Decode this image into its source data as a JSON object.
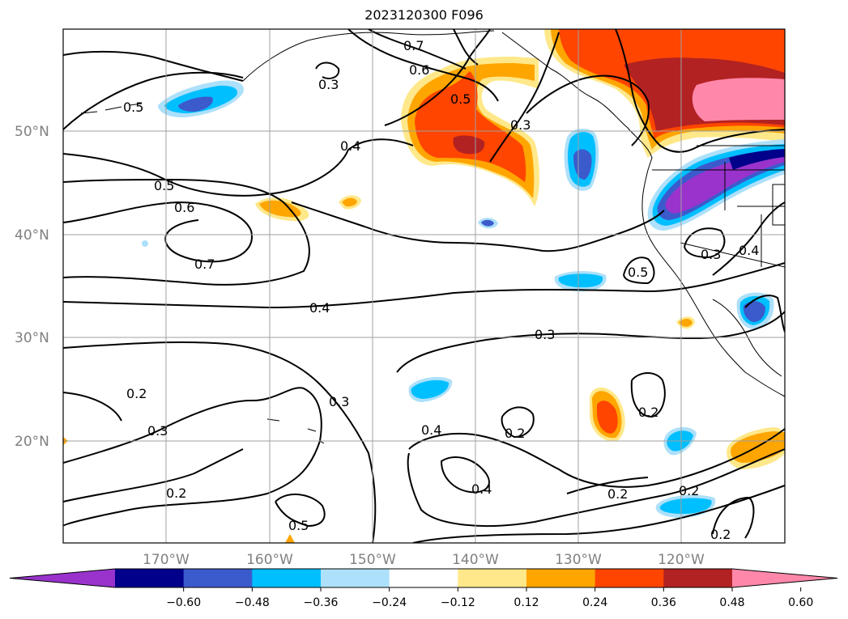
{
  "title": "2023120300 F096",
  "map": {
    "lon_range": [
      -180,
      -110
    ],
    "lat_range": [
      10,
      60
    ],
    "lat_ticks": [
      "50°N",
      "40°N",
      "30°N",
      "20°N"
    ],
    "lon_ticks": [
      "170°W",
      "160°W",
      "150°W",
      "140°W",
      "130°W",
      "120°W"
    ],
    "grid": true,
    "contour_labels": [
      "0.7",
      "0.6",
      "0.3",
      "0.5",
      "0.3",
      "0.5",
      "0.4",
      "0.5",
      "0.6",
      "0.7",
      "0.4",
      "0.3",
      "0.5",
      "0.3",
      "0.4",
      "0.2",
      "0.3",
      "0.3",
      "0.4",
      "0.2",
      "0.2",
      "0.2",
      "0.5",
      "0.4",
      "0.2",
      "0.2",
      "0.2"
    ],
    "colorbar": {
      "extend": "both",
      "colors": [
        "#9933CC",
        "#00008B",
        "#3B5BCC",
        "#00BFFF",
        "#ADE0FA",
        "#FFFFFF",
        "#FFE88A",
        "#FFA500",
        "#FF4500",
        "#B22222",
        "#FF88AA"
      ],
      "tick_labels": [
        "−0.60",
        "−0.48",
        "−0.36",
        "−0.24",
        "−0.12",
        "0.12",
        "0.24",
        "0.36",
        "0.48",
        "0.60"
      ]
    }
  }
}
